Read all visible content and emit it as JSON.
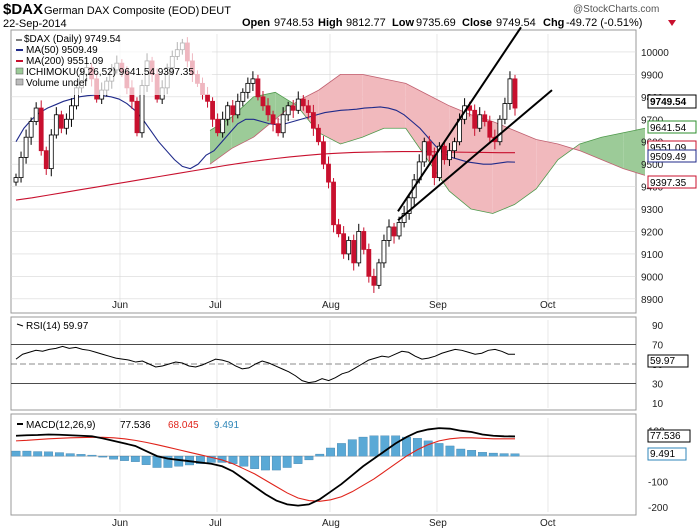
{
  "header": {
    "symbol": "$DAX",
    "name": "German DAX Composite (EOD)",
    "exchange": "DEUT",
    "date": "22-Sep-2014",
    "open_label": "Open",
    "open": "9748.53",
    "high_label": "High",
    "high": "9812.77",
    "low_label": "Low",
    "low": "9735.69",
    "close_label": "Close",
    "close": "9749.54",
    "chg_label": "Chg",
    "chg": "-49.72 (-0.51%)",
    "watermark": "@StockCharts.com"
  },
  "legend": {
    "price": "$DAX (Daily) 9749.54",
    "ma50": "MA(50) 9509.49",
    "ma200": "MA(200) 9551.09",
    "ichimoku": "ICHIMOKU(9,26,52) 9641.54 9397.35",
    "volume": "Volume undef"
  },
  "badges": {
    "last": "9749.54",
    "ichi_a": "9641.54",
    "ma200": "9551.09",
    "ma50": "9509.49",
    "ichi_b": "9397.35",
    "rsi": "59.97",
    "macd": "77.536",
    "macd_hist": "9.491"
  },
  "rsi_title": "RSI(14) 59.97",
  "macd_title": {
    "name": "MACD(12,26,9)",
    "v1": "77.536",
    "v2": "68.045",
    "v3": "9.491"
  },
  "colors": {
    "up": "#000000",
    "down": "#c8102e",
    "ma50": "#1f2a8a",
    "ma200": "#c8102e",
    "cloud_bull": "#9ccb98",
    "cloud_bear": "#f1b9bd",
    "hist": "#5aa9d6",
    "macd_signal": "#e0241b",
    "grid": "#d8d8d8"
  },
  "chart_data": [
    {
      "type": "candlestick",
      "title": "$DAX German DAX Composite (EOD) DEUT",
      "x_labels": [
        "Jun",
        "Jul",
        "Aug",
        "Sep",
        "Oct"
      ],
      "ylim": [
        8850,
        10080
      ],
      "y_ticks": [
        8900,
        9000,
        9100,
        9200,
        9300,
        9400,
        9500,
        9600,
        9700,
        9800,
        9900,
        10000
      ],
      "closes": [
        9440,
        9530,
        9620,
        9690,
        9750,
        9560,
        9480,
        9630,
        9720,
        9660,
        9700,
        9760,
        9840,
        9900,
        9930,
        9880,
        9790,
        9830,
        9870,
        9920,
        9950,
        9910,
        9840,
        9780,
        9640,
        9850,
        9960,
        9900,
        9790,
        9840,
        9930,
        9980,
        10010,
        10040,
        9960,
        9900,
        9860,
        9810,
        9780,
        9700,
        9640,
        9700,
        9760,
        9720,
        9780,
        9820,
        9860,
        9880,
        9800,
        9760,
        9720,
        9680,
        9640,
        9720,
        9760,
        9740,
        9790,
        9760,
        9730,
        9660,
        9600,
        9500,
        9420,
        9230,
        9190,
        9100,
        9160,
        9060,
        9200,
        9120,
        9000,
        8960,
        9060,
        9160,
        9220,
        9180,
        9240,
        9280,
        9350,
        9430,
        9510,
        9600,
        9540,
        9440,
        9580,
        9520,
        9560,
        9600,
        9700,
        9760,
        9740,
        9660,
        9720,
        9690,
        9620,
        9600,
        9700,
        9770,
        9880,
        9750
      ],
      "ma50": [
        9600,
        9660,
        9700,
        9730,
        9750,
        9765,
        9780,
        9790,
        9800,
        9805,
        9808,
        9805,
        9800,
        9790,
        9770,
        9740,
        9700,
        9650,
        9600,
        9560,
        9520,
        9490,
        9480,
        9500,
        9540,
        9560,
        9600,
        9640,
        9680,
        9700,
        9700,
        9690,
        9680,
        9675,
        9680,
        9690,
        9700,
        9710,
        9720,
        9730,
        9735,
        9740,
        9742,
        9745,
        9750,
        9752,
        9755,
        9750,
        9740,
        9720,
        9690,
        9660,
        9620,
        9580,
        9550,
        9530,
        9520,
        9510,
        9505,
        9500,
        9500,
        9505,
        9510,
        9509
      ],
      "ma200": [
        9340,
        9350,
        9362,
        9374,
        9386,
        9398,
        9410,
        9422,
        9434,
        9446,
        9458,
        9470,
        9482,
        9494,
        9505,
        9515,
        9524,
        9532,
        9539,
        9545,
        9549,
        9552,
        9554,
        9555,
        9556,
        9556,
        9555,
        9554,
        9553,
        9552,
        9551,
        9551
      ],
      "cloud_a": [
        9650,
        9710,
        9800,
        9820,
        9760,
        9640,
        9590,
        9620,
        9660,
        9660,
        9520,
        9380,
        9300,
        9280,
        9320,
        9390,
        9520,
        9590,
        9620,
        9640,
        9660
      ],
      "cloud_b": [
        9500,
        9570,
        9620,
        9700,
        9780,
        9830,
        9900,
        9900,
        9880,
        9860,
        9810,
        9760,
        9720,
        9690,
        9650,
        9610,
        9590,
        9560,
        9520,
        9480,
        9450
      ],
      "trendlines": [
        {
          "from": [
            "Aug",
            9290
          ],
          "to": [
            "Sep",
            10110
          ]
        },
        {
          "from": [
            "Aug",
            9250
          ],
          "to": [
            "Sep",
            9830
          ]
        }
      ]
    },
    {
      "type": "line",
      "title": "RSI(14) 59.97",
      "ylim": [
        5,
        95
      ],
      "y_ticks": [
        10,
        30,
        50,
        70,
        90
      ],
      "bands": [
        30,
        70
      ],
      "values": [
        55,
        60,
        62,
        64,
        63,
        65,
        66,
        68,
        66,
        67,
        65,
        64,
        62,
        60,
        58,
        56,
        55,
        54,
        52,
        53,
        50,
        47,
        48,
        50,
        52,
        51,
        48,
        47,
        49,
        52,
        55,
        54,
        52,
        48,
        45,
        46,
        50,
        53,
        51,
        48,
        45,
        42,
        38,
        33,
        31,
        32,
        35,
        33,
        36,
        40,
        42,
        46,
        50,
        54,
        56,
        58,
        57,
        60,
        63,
        62,
        58,
        55,
        56,
        58,
        61,
        63,
        65,
        64,
        62,
        60,
        61,
        64,
        65,
        63,
        60,
        59.97
      ]
    },
    {
      "type": "line",
      "title": "MACD(12,26,9)",
      "ylim": [
        -220,
        150
      ],
      "y_ticks": [
        -200,
        -100,
        0,
        100
      ],
      "macd": [
        80,
        82,
        83,
        85,
        84,
        82,
        80,
        78,
        70,
        60,
        50,
        40,
        20,
        0,
        -10,
        -15,
        -20,
        -25,
        -30,
        -40,
        -60,
        -90,
        -120,
        -150,
        -175,
        -190,
        -195,
        -190,
        -170,
        -140,
        -110,
        -75,
        -40,
        -10,
        20,
        50,
        75,
        95,
        105,
        110,
        108,
        100,
        95,
        85,
        80,
        78,
        77.5
      ],
      "signal": [
        60,
        62,
        65,
        68,
        70,
        72,
        73,
        74,
        74,
        72,
        68,
        62,
        54,
        45,
        35,
        25,
        15,
        5,
        -5,
        -15,
        -30,
        -50,
        -70,
        -95,
        -120,
        -145,
        -165,
        -175,
        -178,
        -172,
        -160,
        -140,
        -115,
        -90,
        -60,
        -30,
        0,
        25,
        45,
        60,
        68,
        72,
        72,
        70,
        68,
        68,
        68.045
      ],
      "histogram": [
        20,
        20,
        18,
        17,
        14,
        10,
        7,
        4,
        -4,
        -12,
        -18,
        -22,
        -34,
        -45,
        -45,
        -40,
        -35,
        -30,
        -25,
        -25,
        -30,
        -40,
        -50,
        -55,
        -55,
        -45,
        -30,
        -15,
        8,
        32,
        50,
        65,
        75,
        80,
        80,
        80,
        75,
        70,
        60,
        50,
        40,
        28,
        23,
        15,
        12,
        10,
        9.491
      ]
    }
  ]
}
